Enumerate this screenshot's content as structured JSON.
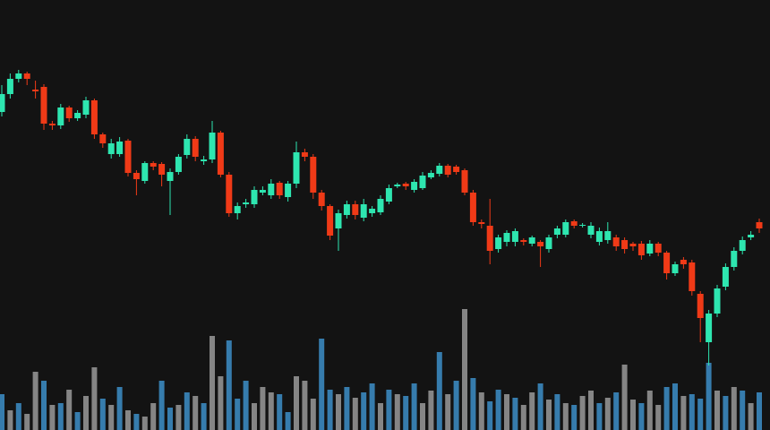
{
  "chart_data": {
    "type": "candlestick",
    "ylim": [
      0,
      480
    ],
    "up_color": "#2ee6b0",
    "down_color": "#f03a17",
    "open": [
      355,
      375,
      392,
      398,
      380,
      383,
      342,
      340,
      360,
      348,
      352,
      368,
      330,
      308,
      308,
      323,
      287,
      278,
      298,
      297,
      278,
      288,
      307,
      325,
      300,
      302,
      332,
      285,
      242,
      252,
      252,
      265,
      262,
      276,
      260,
      275,
      310,
      305,
      265,
      250,
      225,
      240,
      252,
      237,
      242,
      243,
      255,
      272,
      275,
      268,
      270,
      282,
      286,
      295,
      294,
      290,
      265,
      232,
      228,
      202,
      210,
      210,
      212,
      208,
      210,
      202,
      218,
      218,
      233,
      228,
      218,
      210,
      212,
      215,
      212,
      208,
      208,
      197,
      208,
      198,
      175,
      190,
      187,
      152,
      98,
      130,
      160,
      182,
      200,
      215,
      232
    ],
    "close": [
      375,
      392,
      398,
      392,
      378,
      342,
      340,
      360,
      348,
      354,
      368,
      330,
      320,
      320,
      322,
      287,
      280,
      298,
      294,
      285,
      288,
      305,
      325,
      305,
      302,
      332,
      285,
      242,
      250,
      254,
      268,
      268,
      275,
      262,
      275,
      310,
      305,
      265,
      250,
      217,
      242,
      252,
      240,
      252,
      247,
      258,
      270,
      274,
      272,
      277,
      284,
      287,
      295,
      285,
      288,
      265,
      232,
      230,
      200,
      215,
      220,
      222,
      210,
      215,
      205,
      215,
      225,
      232,
      228,
      229,
      228,
      222,
      222,
      205,
      202,
      205,
      195,
      208,
      198,
      175,
      185,
      185,
      155,
      125,
      130,
      158,
      182,
      200,
      212,
      218,
      225
    ],
    "high": [
      385,
      398,
      402,
      400,
      390,
      386,
      345,
      364,
      362,
      357,
      372,
      370,
      332,
      325,
      327,
      325,
      290,
      300,
      300,
      299,
      292,
      308,
      330,
      328,
      306,
      345,
      334,
      288,
      254,
      258,
      272,
      272,
      280,
      278,
      278,
      322,
      314,
      308,
      268,
      252,
      246,
      256,
      256,
      258,
      250,
      262,
      274,
      276,
      277,
      280,
      288,
      290,
      298,
      297,
      296,
      292,
      268,
      235,
      258,
      218,
      223,
      225,
      214,
      217,
      212,
      218,
      228,
      235,
      235,
      231,
      232,
      226,
      232,
      218,
      215,
      210,
      211,
      212,
      210,
      200,
      188,
      193,
      190,
      155,
      134,
      162,
      186,
      204,
      216,
      222,
      236
    ],
    "low": [
      350,
      370,
      388,
      385,
      370,
      335,
      335,
      336,
      344,
      345,
      348,
      325,
      315,
      303,
      305,
      283,
      262,
      275,
      290,
      272,
      240,
      285,
      303,
      300,
      296,
      298,
      282,
      238,
      235,
      248,
      248,
      262,
      258,
      258,
      255,
      270,
      300,
      258,
      245,
      212,
      200,
      236,
      235,
      233,
      238,
      240,
      252,
      270,
      268,
      265,
      268,
      280,
      283,
      282,
      285,
      262,
      228,
      225,
      185,
      198,
      205,
      205,
      206,
      205,
      182,
      198,
      214,
      215,
      225,
      226,
      214,
      206,
      208,
      200,
      197,
      200,
      190,
      194,
      194,
      168,
      172,
      180,
      150,
      98,
      72,
      126,
      156,
      178,
      196,
      212,
      220
    ],
    "y2lim": [
      0,
      150
    ],
    "volume": [
      40,
      22,
      30,
      18,
      65,
      55,
      28,
      30,
      45,
      20,
      38,
      70,
      35,
      28,
      48,
      22,
      18,
      15,
      30,
      55,
      25,
      28,
      42,
      38,
      30,
      105,
      60,
      100,
      35,
      55,
      30,
      48,
      42,
      40,
      20,
      60,
      55,
      35,
      102,
      45,
      40,
      48,
      36,
      42,
      52,
      30,
      45,
      40,
      38,
      52,
      30,
      44,
      87,
      40,
      55,
      135,
      58,
      42,
      32,
      45,
      40,
      36,
      28,
      42,
      52,
      34,
      40,
      30,
      28,
      38,
      44,
      30,
      36,
      42,
      73,
      34,
      30,
      44,
      28,
      48,
      52,
      38,
      40,
      35,
      75,
      44,
      38,
      48,
      44,
      30,
      42
    ],
    "volume_colors": [
      "#3d8fc9",
      "#9a9a9a",
      "#3d8fc9",
      "#9a9a9a",
      "#9a9a9a",
      "#3d8fc9",
      "#9a9a9a",
      "#3d8fc9",
      "#9a9a9a",
      "#3d8fc9",
      "#9a9a9a",
      "#9a9a9a",
      "#3d8fc9",
      "#9a9a9a",
      "#3d8fc9",
      "#9a9a9a",
      "#3d8fc9",
      "#9a9a9a",
      "#9a9a9a",
      "#3d8fc9",
      "#3d8fc9",
      "#9a9a9a",
      "#3d8fc9",
      "#9a9a9a",
      "#3d8fc9",
      "#9a9a9a",
      "#9a9a9a",
      "#3d8fc9",
      "#3d8fc9",
      "#3d8fc9",
      "#9a9a9a",
      "#9a9a9a",
      "#9a9a9a",
      "#3d8fc9",
      "#3d8fc9",
      "#9a9a9a",
      "#9a9a9a",
      "#9a9a9a",
      "#3d8fc9",
      "#3d8fc9",
      "#9a9a9a",
      "#3d8fc9",
      "#9a9a9a",
      "#3d8fc9",
      "#3d8fc9",
      "#9a9a9a",
      "#3d8fc9",
      "#9a9a9a",
      "#3d8fc9",
      "#3d8fc9",
      "#9a9a9a",
      "#9a9a9a",
      "#3d8fc9",
      "#9a9a9a",
      "#3d8fc9",
      "#9a9a9a",
      "#3d8fc9",
      "#9a9a9a",
      "#3d8fc9",
      "#3d8fc9",
      "#9a9a9a",
      "#3d8fc9",
      "#9a9a9a",
      "#9a9a9a",
      "#3d8fc9",
      "#9a9a9a",
      "#3d8fc9",
      "#9a9a9a",
      "#3d8fc9",
      "#9a9a9a",
      "#9a9a9a",
      "#3d8fc9",
      "#9a9a9a",
      "#3d8fc9",
      "#9a9a9a",
      "#9a9a9a",
      "#3d8fc9",
      "#9a9a9a",
      "#9a9a9a",
      "#3d8fc9",
      "#3d8fc9",
      "#9a9a9a",
      "#3d8fc9",
      "#3d8fc9",
      "#3d8fc9",
      "#9a9a9a",
      "#3d8fc9",
      "#9a9a9a",
      "#3d8fc9",
      "#9a9a9a",
      "#3d8fc9"
    ]
  }
}
